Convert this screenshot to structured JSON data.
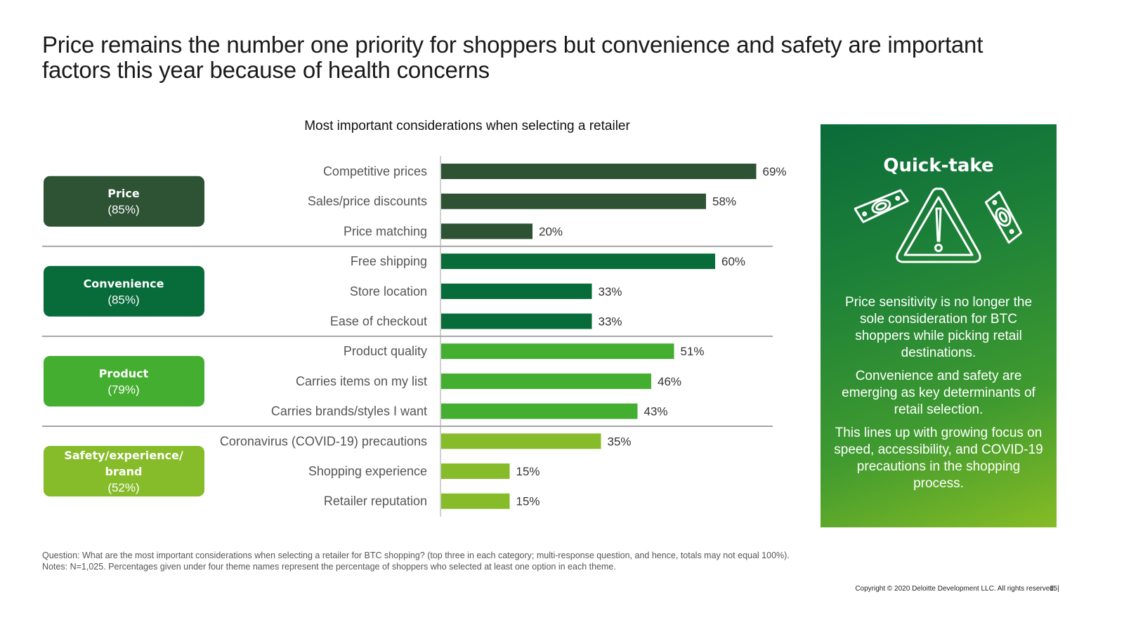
{
  "slide": {
    "title": "Price remains the number one priority for shoppers but convenience and safety are important factors this year because of health concerns"
  },
  "chart_data": {
    "type": "bar",
    "orientation": "horizontal",
    "title": "Most important considerations when selecting a retailer",
    "xlabel": "",
    "ylabel": "",
    "xlim": [
      0,
      100
    ],
    "grid": false,
    "value_format": "percent",
    "groups": [
      {
        "name": "Price",
        "total_label": "(85%)",
        "color": "#2d5234",
        "categories": [
          "Competitive prices",
          "Sales/price discounts",
          "Price matching"
        ],
        "values": [
          69,
          58,
          20
        ]
      },
      {
        "name": "Convenience",
        "total_label": "(85%)",
        "color": "#076b3a",
        "categories": [
          "Free shipping",
          "Store location",
          "Ease of checkout"
        ],
        "values": [
          60,
          33,
          33
        ]
      },
      {
        "name": "Product",
        "total_label": "(79%)",
        "color": "#43ae2f",
        "categories": [
          "Product quality",
          "Carries items on my list",
          "Carries brands/styles I want"
        ],
        "values": [
          51,
          46,
          43
        ]
      },
      {
        "name": "Safety/experience/ brand",
        "name_lines": [
          "Safety/experience/",
          "brand"
        ],
        "total_label": "(52%)",
        "color": "#86bc2a",
        "categories": [
          "Coronavirus (COVID-19) precautions",
          "Shopping experience",
          "Retailer reputation"
        ],
        "values": [
          35,
          15,
          15
        ]
      }
    ]
  },
  "quick_take": {
    "title": "Quick-take",
    "icon": "warning-with-money-icon",
    "paragraphs": [
      "Price sensitivity is no longer the sole consideration for BTC shoppers while picking retail destinations.",
      "Convenience and safety are emerging as key determinants of retail selection.",
      "This lines up with growing focus on speed, accessibility, and COVID-19 precautions in the shopping process."
    ]
  },
  "footer": {
    "question": "Question: What are the most important considerations when selecting a retailer for BTC shopping? (top three in each category; multi-response question, and hence, totals may not equal 100%).",
    "notes": "Notes: N=1,025. Percentages given under four theme names represent the percentage of shoppers who selected at least one option in each theme.",
    "copyright": "Copyright © 2020 Deloitte Development LLC. All rights reserved. |",
    "page_number": "15"
  }
}
